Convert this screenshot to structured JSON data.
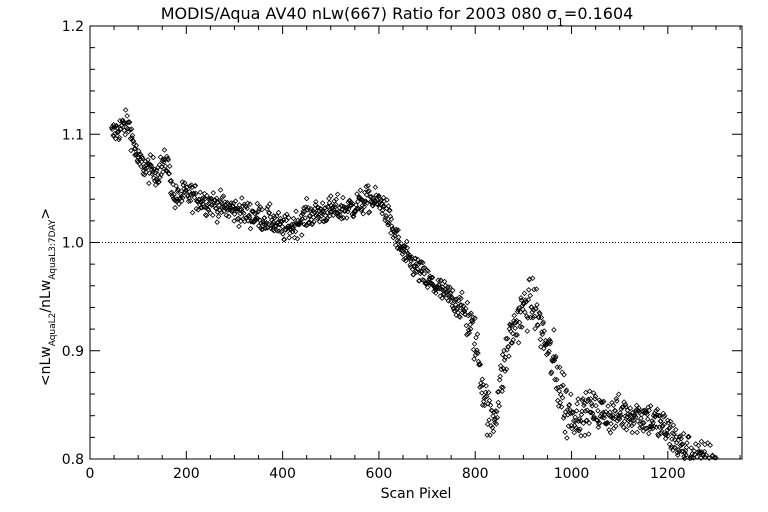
{
  "chart_data": {
    "type": "scatter",
    "title_main": "MODIS/Aqua AV40 nLw(667) Ratio for 2003 080 ",
    "title_sigma": "σ",
    "title_sigma_sub": "1",
    "title_sigma_value": "=0.1604",
    "xlabel": "Scan Pixel",
    "ylabel_start": "<nLw",
    "ylabel_sub1": "AquaL2",
    "ylabel_mid": "/nLw",
    "ylabel_sub2": "AquaL3:7DAY",
    "ylabel_end": ">",
    "xlim": [
      0,
      1354
    ],
    "ylim": [
      0.8,
      1.2
    ],
    "x_ticks": [
      0,
      200,
      400,
      600,
      800,
      1000,
      1200
    ],
    "x_tick_labels": [
      "0",
      "200",
      "400",
      "600",
      "800",
      "1000",
      "1200"
    ],
    "y_ticks": [
      0.8,
      0.9,
      1.0,
      1.1,
      1.2
    ],
    "y_tick_labels": [
      "0.8",
      "0.9",
      "1.0",
      "1.1",
      "1.2"
    ],
    "reference_line_y": 1.0,
    "marker": "diamond",
    "trend": [
      [
        45,
        1.1
      ],
      [
        60,
        1.105
      ],
      [
        80,
        1.11
      ],
      [
        100,
        1.075
      ],
      [
        120,
        1.068
      ],
      [
        140,
        1.065
      ],
      [
        160,
        1.075
      ],
      [
        175,
        1.04
      ],
      [
        200,
        1.045
      ],
      [
        230,
        1.04
      ],
      [
        260,
        1.035
      ],
      [
        300,
        1.03
      ],
      [
        340,
        1.025
      ],
      [
        380,
        1.02
      ],
      [
        400,
        1.012
      ],
      [
        420,
        1.015
      ],
      [
        450,
        1.025
      ],
      [
        500,
        1.03
      ],
      [
        540,
        1.032
      ],
      [
        580,
        1.04
      ],
      [
        610,
        1.035
      ],
      [
        630,
        1.01
      ],
      [
        650,
        0.99
      ],
      [
        680,
        0.975
      ],
      [
        700,
        0.965
      ],
      [
        730,
        0.955
      ],
      [
        760,
        0.945
      ],
      [
        780,
        0.935
      ],
      [
        800,
        0.91
      ],
      [
        815,
        0.87
      ],
      [
        830,
        0.835
      ],
      [
        840,
        0.84
      ],
      [
        855,
        0.875
      ],
      [
        870,
        0.91
      ],
      [
        890,
        0.93
      ],
      [
        910,
        0.945
      ],
      [
        925,
        0.94
      ],
      [
        940,
        0.915
      ],
      [
        960,
        0.89
      ],
      [
        975,
        0.87
      ],
      [
        990,
        0.845
      ],
      [
        1010,
        0.84
      ],
      [
        1040,
        0.845
      ],
      [
        1080,
        0.84
      ],
      [
        1120,
        0.842
      ],
      [
        1160,
        0.838
      ],
      [
        1190,
        0.83
      ],
      [
        1210,
        0.82
      ],
      [
        1230,
        0.81
      ],
      [
        1250,
        0.805
      ],
      [
        1265,
        0.8
      ],
      [
        1300,
        0.798
      ]
    ],
    "x_range": [
      45,
      1300
    ],
    "approx_point_count": 1250,
    "spread": 0.012
  }
}
